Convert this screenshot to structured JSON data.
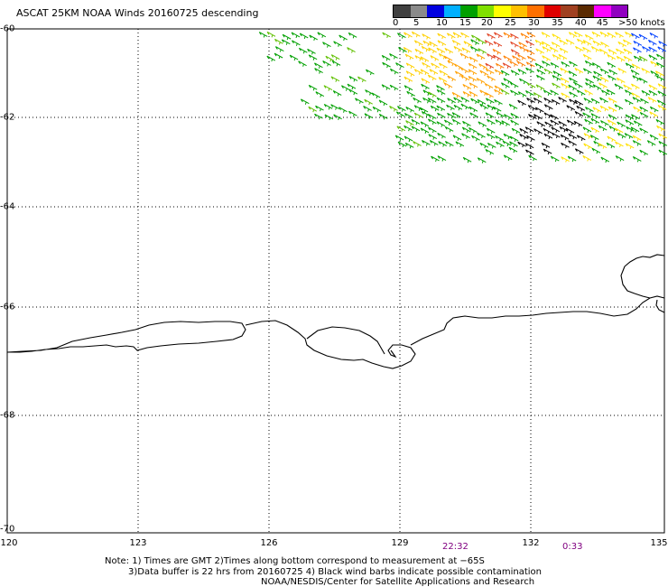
{
  "title": "ASCAT 25KM NOAA Winds 20160725 descending",
  "legend": {
    "colors": [
      "#404040",
      "#8a8a8a",
      "#0000e0",
      "#00b0ff",
      "#00a000",
      "#80e000",
      "#ffff00",
      "#ffc000",
      "#ff7000",
      "#e00000",
      "#a04020",
      "#5a2a00",
      "#ff00ff",
      "#9000c0",
      "#400080",
      "#202020"
    ],
    "ticks": [
      "0",
      "5",
      "10",
      "15",
      "20",
      "25",
      "30",
      "35",
      "40",
      "45",
      ">50 knots"
    ]
  },
  "axes": {
    "lat_labels": [
      "-60",
      "-62",
      "-64",
      "-66",
      "-68",
      "-70"
    ],
    "lon_labels": [
      "120",
      "123",
      "126",
      "129",
      "132",
      "135"
    ]
  },
  "times": [
    "22:32",
    "0:33"
  ],
  "notes": [
    "Note: 1) Times are GMT 2)Times along bottom correspond to measurement at −65S",
    "3)Data buffer is 22 hrs from 20160725 4) Black wind barbs indicate possible contamination",
    "NOAA/NESDIS/Center for Satellite Applications and Research"
  ]
}
